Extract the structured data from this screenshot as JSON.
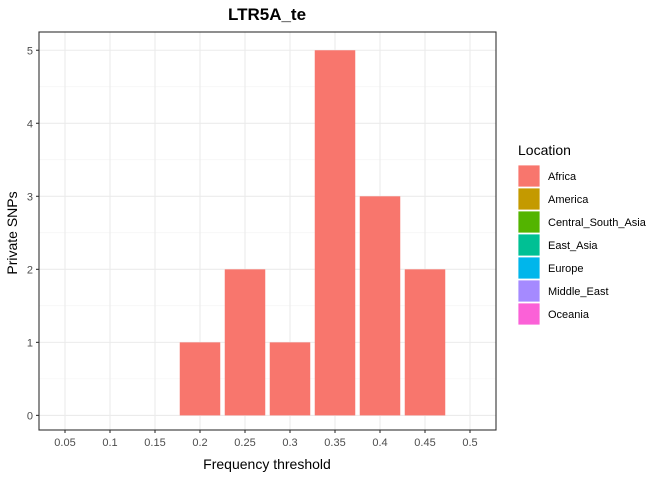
{
  "chart_data": {
    "type": "bar",
    "title": "LTR5A_te",
    "xlabel": "Frequency threshold",
    "ylabel": "Private SNPs",
    "categories": [
      "0.05",
      "0.1",
      "0.15",
      "0.2",
      "0.25",
      "0.3",
      "0.35",
      "0.4",
      "0.45",
      "0.5"
    ],
    "series": [
      {
        "name": "Africa",
        "color": "#F8766D",
        "values": [
          0,
          0,
          0,
          1,
          2,
          1,
          5,
          3,
          2,
          0
        ]
      }
    ],
    "yticks": [
      0,
      1,
      2,
      3,
      4,
      5
    ],
    "ylim": [
      -0.2,
      5.25
    ],
    "grid": true,
    "legend": {
      "title": "Location",
      "position": "right",
      "items": [
        {
          "name": "Africa",
          "color": "#F8766D"
        },
        {
          "name": "America",
          "color": "#C49A00"
        },
        {
          "name": "Central_South_Asia",
          "color": "#53B400"
        },
        {
          "name": "East_Asia",
          "color": "#00C094"
        },
        {
          "name": "Europe",
          "color": "#00B6EB"
        },
        {
          "name": "Middle_East",
          "color": "#A58AFF"
        },
        {
          "name": "Oceania",
          "color": "#FB61D7"
        }
      ]
    }
  }
}
